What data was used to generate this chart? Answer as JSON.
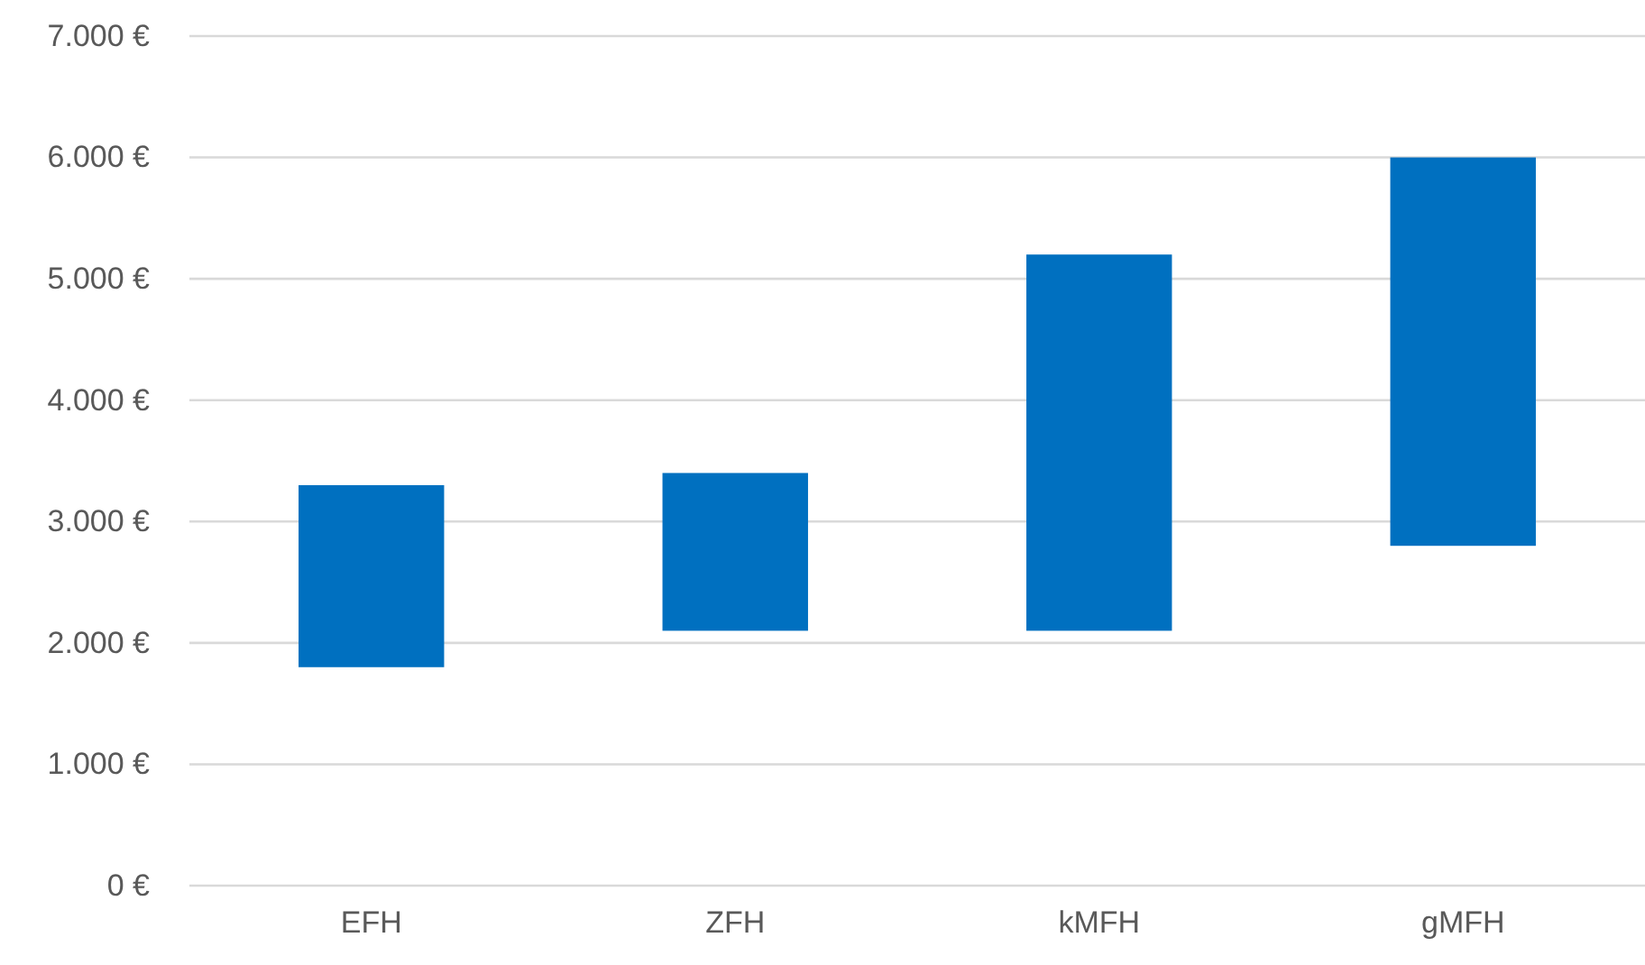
{
  "chart_data": {
    "type": "bar",
    "categories": [
      "EFH",
      "ZFH",
      "kMFH",
      "gMFH"
    ],
    "values": [
      1500,
      1300,
      3100,
      3200
    ],
    "base": [
      1800,
      2100,
      2100,
      2800
    ],
    "color": "#0070c0",
    "ylim": [
      0,
      7000
    ],
    "yticks": [
      {
        "value": 0,
        "label": "0 €"
      },
      {
        "value": 1000,
        "label": "1.000 €"
      },
      {
        "value": 2000,
        "label": "2.000 €"
      },
      {
        "value": 3000,
        "label": "3.000 €"
      },
      {
        "value": 4000,
        "label": "4.000 €"
      },
      {
        "value": 5000,
        "label": "5.000 €"
      },
      {
        "value": 6000,
        "label": "6.000 €"
      },
      {
        "value": 7000,
        "label": "7.000 €"
      }
    ],
    "grid": "y"
  }
}
